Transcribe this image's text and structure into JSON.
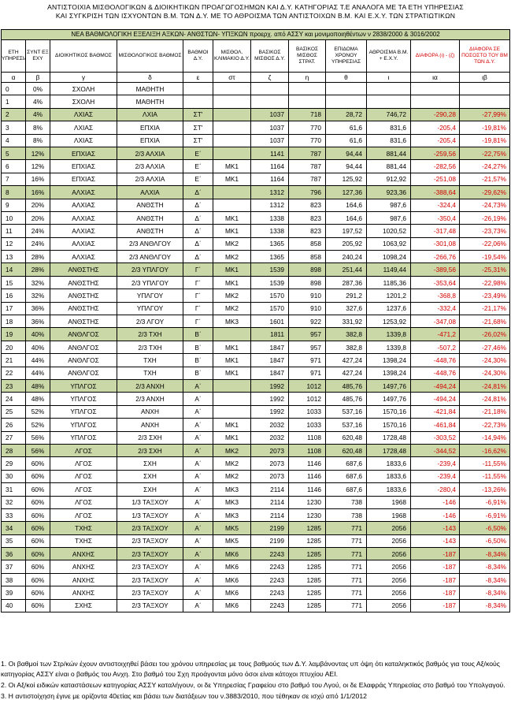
{
  "titles": [
    "ΑΝΤΙΣΤΟΙΧΙΑ ΜΙΣΘΟΛΟΓΙΚΩΝ & ΔΙΟΙΚΗΤΙΚΩΝ ΠΡΟΑΓΩΓΟΣΗΜΩΝ ΚΑΙ Δ.Υ. ΚΑΤΗΓΟΡΙΑΣ Τ.Ε ΑΝΑΛΟΓΑ ΜΕ ΤΑ ΕΤΗ ΥΠΗΡΕΣΙΑΣ",
    "ΚΑΙ ΣΥΓΚΡΙΣΗ ΤΩΝ ΙΣΧΥΟΝΤΩΝ Β.Μ. ΤΩΝ Δ.Υ. ΜΕ ΤΟ ΑΘΡΟΙΣΜΑ ΤΩΝ ΑΝΤΙΣΤΟΙΧΩΝ Β.Μ. ΚΑΙ Ε.Χ.Υ. ΤΩΝ ΣΤΡΑΤΙΩΤΙΚΩΝ"
  ],
  "banner": "ΝΕΑ ΒΑΘΜΟΛΟΓΙΚΗ ΕΞΕΛΙΞΗ ΑΞΚΩΝ- ΑΝΘΣΤΩΝ- ΥΠΞΚΩΝ προερχ. από ΑΣΣΥ και μονιμοποιηθέντων ν 2838/2000 & 3016/2002",
  "headers": [
    "ΕΤΗ ΥΠΗΡΕΣΙΑΣ",
    "ΣΥΝΤ ΕΞ ΕΧΥ",
    "ΔΙΟΙΚΗΤΙΚΟΣ ΒΑΘΜΟΣ",
    "ΜΙΣΘΟΛΟΓΙΚΟΣ ΒΑΘΜΟΣ",
    "ΒΑΘΜΟΙ Δ.Υ.",
    "ΜΙΣΘΟΛ. ΚΛΙΜΑΚΙΟ Δ.Υ.",
    "ΒΑΣΙΚΟΣ ΜΙΣΘΟΣ Δ.Υ.",
    "ΒΑΣΙΚΟΣ ΜΙΣΘΟΣ ΣΤΡΑΤ.",
    "ΕΠΙΔΟΜΑ ΧΡΟΝΟΥ ΥΠΗΡΕΣΙΑΣ",
    "ΑΘΡΟΙΣΜΑ Β.Μ. + Ε.Χ.Υ.",
    "ΔΙΑΦΟΡΑ (ι) - (ζ)",
    "ΔΙΑΦΟΡΑ ΣΕ ΠΟΣΟΣΤΟ ΤΟΥ ΒΜ ΤΩΝ Δ.Υ."
  ],
  "letters": [
    "α",
    "β",
    "γ",
    "δ",
    "ε",
    "στ",
    "ζ",
    "η",
    "θ",
    "ι",
    "ια",
    "ιβ"
  ],
  "rows": [
    {
      "c": [
        "0",
        "0%",
        "ΣΧΟΛΗ",
        "ΜΑΘΗΤΗ",
        "",
        "",
        "",
        "",
        "",
        "",
        "",
        ""
      ],
      "hl": false
    },
    {
      "c": [
        "1",
        "4%",
        "ΣΧΟΛΗ",
        "ΜΑΘΗΤΗ",
        "",
        "",
        "",
        "",
        "",
        "",
        "",
        ""
      ],
      "hl": false
    },
    {
      "c": [
        "2",
        "4%",
        "ΛΧΙΑΣ",
        "ΛΧΙΑ",
        "ΣΤ'",
        "",
        "1037",
        "718",
        "28,72",
        "746,72",
        "-290,28",
        "-27,99%"
      ],
      "hl": true
    },
    {
      "c": [
        "3",
        "8%",
        "ΛΧΙΑΣ",
        "ΕΠΧΙΑ",
        "ΣΤ'",
        "",
        "1037",
        "770",
        "61,6",
        "831,6",
        "-205,4",
        "-19,81%"
      ],
      "hl": false
    },
    {
      "c": [
        "4",
        "8%",
        "ΛΧΙΑΣ",
        "ΕΠΧΙΑ",
        "ΣΤ'",
        "",
        "1037",
        "770",
        "61,6",
        "831,6",
        "-205,4",
        "-19,81%"
      ],
      "hl": false
    },
    {
      "c": [
        "5",
        "12%",
        "ΕΠΧΙΑΣ",
        "2/3 ΑΛΧΙΑ",
        "Ε΄",
        "",
        "1141",
        "787",
        "94,44",
        "881,44",
        "-259,56",
        "-22,75%"
      ],
      "hl": true
    },
    {
      "c": [
        "6",
        "12%",
        "ΕΠΧΙΑΣ",
        "2/3 ΑΛΧΙΑ",
        "Ε΄",
        "ΜΚ1",
        "1164",
        "787",
        "94,44",
        "881,44",
        "-282,56",
        "-24,27%"
      ],
      "hl": false
    },
    {
      "c": [
        "7",
        "16%",
        "ΕΠΧΙΑΣ",
        "2/3 ΑΛΧΙΑ",
        "Ε΄",
        "ΜΚ1",
        "1164",
        "787",
        "125,92",
        "912,92",
        "-251,08",
        "-21,57%"
      ],
      "hl": false
    },
    {
      "c": [
        "8",
        "16%",
        "ΑΛΧΙΑΣ",
        "ΑΛΧΙΑ",
        "Δ΄",
        "",
        "1312",
        "796",
        "127,36",
        "923,36",
        "-388,64",
        "-29,62%"
      ],
      "hl": true
    },
    {
      "c": [
        "9",
        "20%",
        "ΑΛΧΙΑΣ",
        "ΑΝΘΣΤΗ",
        "Δ΄",
        "",
        "1312",
        "823",
        "164,6",
        "987,6",
        "-324,4",
        "-24,73%"
      ],
      "hl": false
    },
    {
      "c": [
        "10",
        "20%",
        "ΑΛΧΙΑΣ",
        "ΑΝΘΣΤΗ",
        "Δ΄",
        "ΜΚ1",
        "1338",
        "823",
        "164,6",
        "987,6",
        "-350,4",
        "-26,19%"
      ],
      "hl": false
    },
    {
      "c": [
        "11",
        "24%",
        "ΑΛΧΙΑΣ",
        "ΑΝΘΣΤΗ",
        "Δ΄",
        "ΜΚ1",
        "1338",
        "823",
        "197,52",
        "1020,52",
        "-317,48",
        "-23,73%"
      ],
      "hl": false
    },
    {
      "c": [
        "12",
        "24%",
        "ΑΛΧΙΑΣ",
        "2/3 ΑΝΘΛΓΟΥ",
        "Δ΄",
        "ΜΚ2",
        "1365",
        "858",
        "205,92",
        "1063,92",
        "-301,08",
        "-22,06%"
      ],
      "hl": false
    },
    {
      "c": [
        "13",
        "28%",
        "ΑΛΧΙΑΣ",
        "2/3 ΑΝΘΛΓΟΥ",
        "Δ΄",
        "ΜΚ2",
        "1365",
        "858",
        "240,24",
        "1098,24",
        "-266,76",
        "-19,54%"
      ],
      "hl": false
    },
    {
      "c": [
        "14",
        "28%",
        "ΑΝΘΣΤΗΣ",
        "2/3 ΥΠΛΓΟΥ",
        "Γ΄",
        "ΜΚ1",
        "1539",
        "898",
        "251,44",
        "1149,44",
        "-389,56",
        "-25,31%"
      ],
      "hl": true
    },
    {
      "c": [
        "15",
        "32%",
        "ΑΝΘΣΤΗΣ",
        "2/3 ΥΠΛΓΟΥ",
        "Γ΄",
        "ΜΚ1",
        "1539",
        "898",
        "287,36",
        "1185,36",
        "-353,64",
        "-22,98%"
      ],
      "hl": false
    },
    {
      "c": [
        "16",
        "32%",
        "ΑΝΘΣΤΗΣ",
        "ΥΠΛΓΟΥ",
        "Γ΄",
        "ΜΚ2",
        "1570",
        "910",
        "291,2",
        "1201,2",
        "-368,8",
        "-23,49%"
      ],
      "hl": false
    },
    {
      "c": [
        "17",
        "36%",
        "ΑΝΘΣΤΗΣ",
        "ΥΠΛΓΟΥ",
        "Γ΄",
        "ΜΚ2",
        "1570",
        "910",
        "327,6",
        "1237,6",
        "-332,4",
        "-21,17%"
      ],
      "hl": false
    },
    {
      "c": [
        "18",
        "36%",
        "ΑΝΘΣΤΗΣ",
        "2/3 ΛΓΟΥ",
        "Γ΄",
        "ΜΚ3",
        "1601",
        "922",
        "331,92",
        "1253,92",
        "-347,08",
        "-21,68%"
      ],
      "hl": false
    },
    {
      "c": [
        "19",
        "40%",
        "ΑΝΘΛΓΟΣ",
        "2/3 ΤΧΗ",
        "Β΄",
        "",
        "1811",
        "957",
        "382,8",
        "1339,8",
        "-471,2",
        "-26,02%"
      ],
      "hl": true
    },
    {
      "c": [
        "20",
        "40%",
        "ΑΝΘΛΓΟΣ",
        "2/3 ΤΧΗ",
        "Β΄",
        "ΜΚ1",
        "1847",
        "957",
        "382,8",
        "1339,8",
        "-507,2",
        "-27,46%"
      ],
      "hl": false
    },
    {
      "c": [
        "21",
        "44%",
        "ΑΝΘΛΓΟΣ",
        "ΤΧΗ",
        "Β΄",
        "ΜΚ1",
        "1847",
        "971",
        "427,24",
        "1398,24",
        "-448,76",
        "-24,30%"
      ],
      "hl": false
    },
    {
      "c": [
        "22",
        "44%",
        "ΑΝΘΛΓΟΣ",
        "ΤΧΗ",
        "Β΄",
        "ΜΚ1",
        "1847",
        "971",
        "427,24",
        "1398,24",
        "-448,76",
        "-24,30%"
      ],
      "hl": false
    },
    {
      "c": [
        "23",
        "48%",
        "ΥΠΛΓΟΣ",
        "2/3 ΑΝΧΗ",
        "Α΄",
        "",
        "1992",
        "1012",
        "485,76",
        "1497,76",
        "-494,24",
        "-24,81%"
      ],
      "hl": true
    },
    {
      "c": [
        "24",
        "48%",
        "ΥΠΛΓΟΣ",
        "2/3 ΑΝΧΗ",
        "Α΄",
        "",
        "1992",
        "1012",
        "485,76",
        "1497,76",
        "-494,24",
        "-24,81%"
      ],
      "hl": false
    },
    {
      "c": [
        "25",
        "52%",
        "ΥΠΛΓΟΣ",
        "ΑΝΧΗ",
        "Α΄",
        "",
        "1992",
        "1033",
        "537,16",
        "1570,16",
        "-421,84",
        "-21,18%"
      ],
      "hl": false
    },
    {
      "c": [
        "26",
        "52%",
        "ΥΠΛΓΟΣ",
        "ΑΝΧΗ",
        "Α΄",
        "ΜΚ1",
        "2032",
        "1033",
        "537,16",
        "1570,16",
        "-461,84",
        "-22,73%"
      ],
      "hl": false
    },
    {
      "c": [
        "27",
        "56%",
        "ΥΠΛΓΟΣ",
        "2/3 ΣΧΗ",
        "Α΄",
        "ΜΚ1",
        "2032",
        "1108",
        "620,48",
        "1728,48",
        "-303,52",
        "-14,94%"
      ],
      "hl": false
    },
    {
      "c": [
        "28",
        "56%",
        "ΛΓΟΣ",
        "2/3 ΣΧΗ",
        "Α΄",
        "ΜΚ2",
        "2073",
        "1108",
        "620,48",
        "1728,48",
        "-344,52",
        "-16,62%"
      ],
      "hl": true
    },
    {
      "c": [
        "29",
        "60%",
        "ΛΓΟΣ",
        "ΣΧΗ",
        "Α΄",
        "ΜΚ2",
        "2073",
        "1146",
        "687,6",
        "1833,6",
        "-239,4",
        "-11,55%"
      ],
      "hl": false
    },
    {
      "c": [
        "30",
        "60%",
        "ΛΓΟΣ",
        "ΣΧΗ",
        "Α΄",
        "ΜΚ2",
        "2073",
        "1146",
        "687,6",
        "1833,6",
        "-239,4",
        "-11,55%"
      ],
      "hl": false
    },
    {
      "c": [
        "31",
        "60%",
        "ΛΓΟΣ",
        "ΣΧΗ",
        "Α΄",
        "ΜΚ3",
        "2114",
        "1146",
        "687,6",
        "1833,6",
        "-280,4",
        "-13,26%"
      ],
      "hl": false
    },
    {
      "c": [
        "32",
        "60%",
        "ΛΓΟΣ",
        "1/3 ΤΑΞΧΟΥ",
        "Α΄",
        "ΜΚ3",
        "2114",
        "1230",
        "738",
        "1968",
        "-146",
        "-6,91%"
      ],
      "hl": false
    },
    {
      "c": [
        "33",
        "60%",
        "ΛΓΟΣ",
        "1/3 ΤΑΞΧΟΥ",
        "Α΄",
        "ΜΚ3",
        "2114",
        "1230",
        "738",
        "1968",
        "-146",
        "-6,91%"
      ],
      "hl": false
    },
    {
      "c": [
        "34",
        "60%",
        "ΤΧΗΣ",
        "2/3 ΤΑΞΧΟΥ",
        "Α΄",
        "ΜΚ5",
        "2199",
        "1285",
        "771",
        "2056",
        "-143",
        "-6,50%"
      ],
      "hl": true
    },
    {
      "c": [
        "35",
        "60%",
        "ΤΧΗΣ",
        "2/3 ΤΑΞΧΟΥ",
        "Α΄",
        "ΜΚ5",
        "2199",
        "1285",
        "771",
        "2056",
        "-143",
        "-6,50%"
      ],
      "hl": false
    },
    {
      "c": [
        "36",
        "60%",
        "ΑΝΧΗΣ",
        "2/3 ΤΑΞΧΟΥ",
        "Α΄",
        "ΜΚ6",
        "2243",
        "1285",
        "771",
        "2056",
        "-187",
        "-8,34%"
      ],
      "hl": true
    },
    {
      "c": [
        "37",
        "60%",
        "ΑΝΧΗΣ",
        "2/3 ΤΑΞΧΟΥ",
        "Α΄",
        "ΜΚ6",
        "2243",
        "1285",
        "771",
        "2056",
        "-187",
        "-8,34%"
      ],
      "hl": false
    },
    {
      "c": [
        "38",
        "60%",
        "ΑΝΧΗΣ",
        "2/3 ΤΑΞΧΟΥ",
        "Α΄",
        "ΜΚ6",
        "2243",
        "1285",
        "771",
        "2056",
        "-187",
        "-8,34%"
      ],
      "hl": false
    },
    {
      "c": [
        "39",
        "60%",
        "ΑΝΧΗΣ",
        "2/3 ΤΑΞΧΟΥ",
        "Α΄",
        "ΜΚ6",
        "2243",
        "1285",
        "771",
        "2056",
        "-187",
        "-8,34%"
      ],
      "hl": false
    },
    {
      "c": [
        "40",
        "60%",
        "ΣΧΗΣ",
        "2/3 ΤΑΞΧΟΥ",
        "Α΄",
        "ΜΚ6",
        "2243",
        "1285",
        "771",
        "2056",
        "-187",
        "-8,34%"
      ],
      "hl": false
    }
  ],
  "notes": [
    "1. Οι βαθμοί των Στρ/κών έχουν αντιστοιχηθεί βάσει του χρόνου υπηρεσίας με τους βαθμούς των Δ.Υ. λαμβάνοντας υπ όψη ότι καταληκτικός βαθμός για τους Αξ/κούς κατηγορίας ΑΣΣΥ είναι ο βαθμός του Ανχη. Στο βαθμό του Σχη προάγονται μόνο όσοι είναι κάτοχοι πτυχίου ΑΕΙ.",
    "2. Οι Αξ/κοί ειδικών καταστάσεων κατηγορίας ΑΣΣΥ καταλήγουν, οι δε Υπηρεσίας Γραφείου στο βαθμό του Λγού, οι δε Ελαφράς Υπηρεσίας στο βαθμό του Υπολγαγού.",
    "3. Η αντιστοίχηση έγινε με ορίζοντα 40ετίας και βάσει των διατάξεων του ν.3883/2010, που τέθηκαν σε ισχύ από 1/1/2012"
  ],
  "colors": {
    "highlight": "#c9d8a6",
    "negative": "#d40000"
  }
}
